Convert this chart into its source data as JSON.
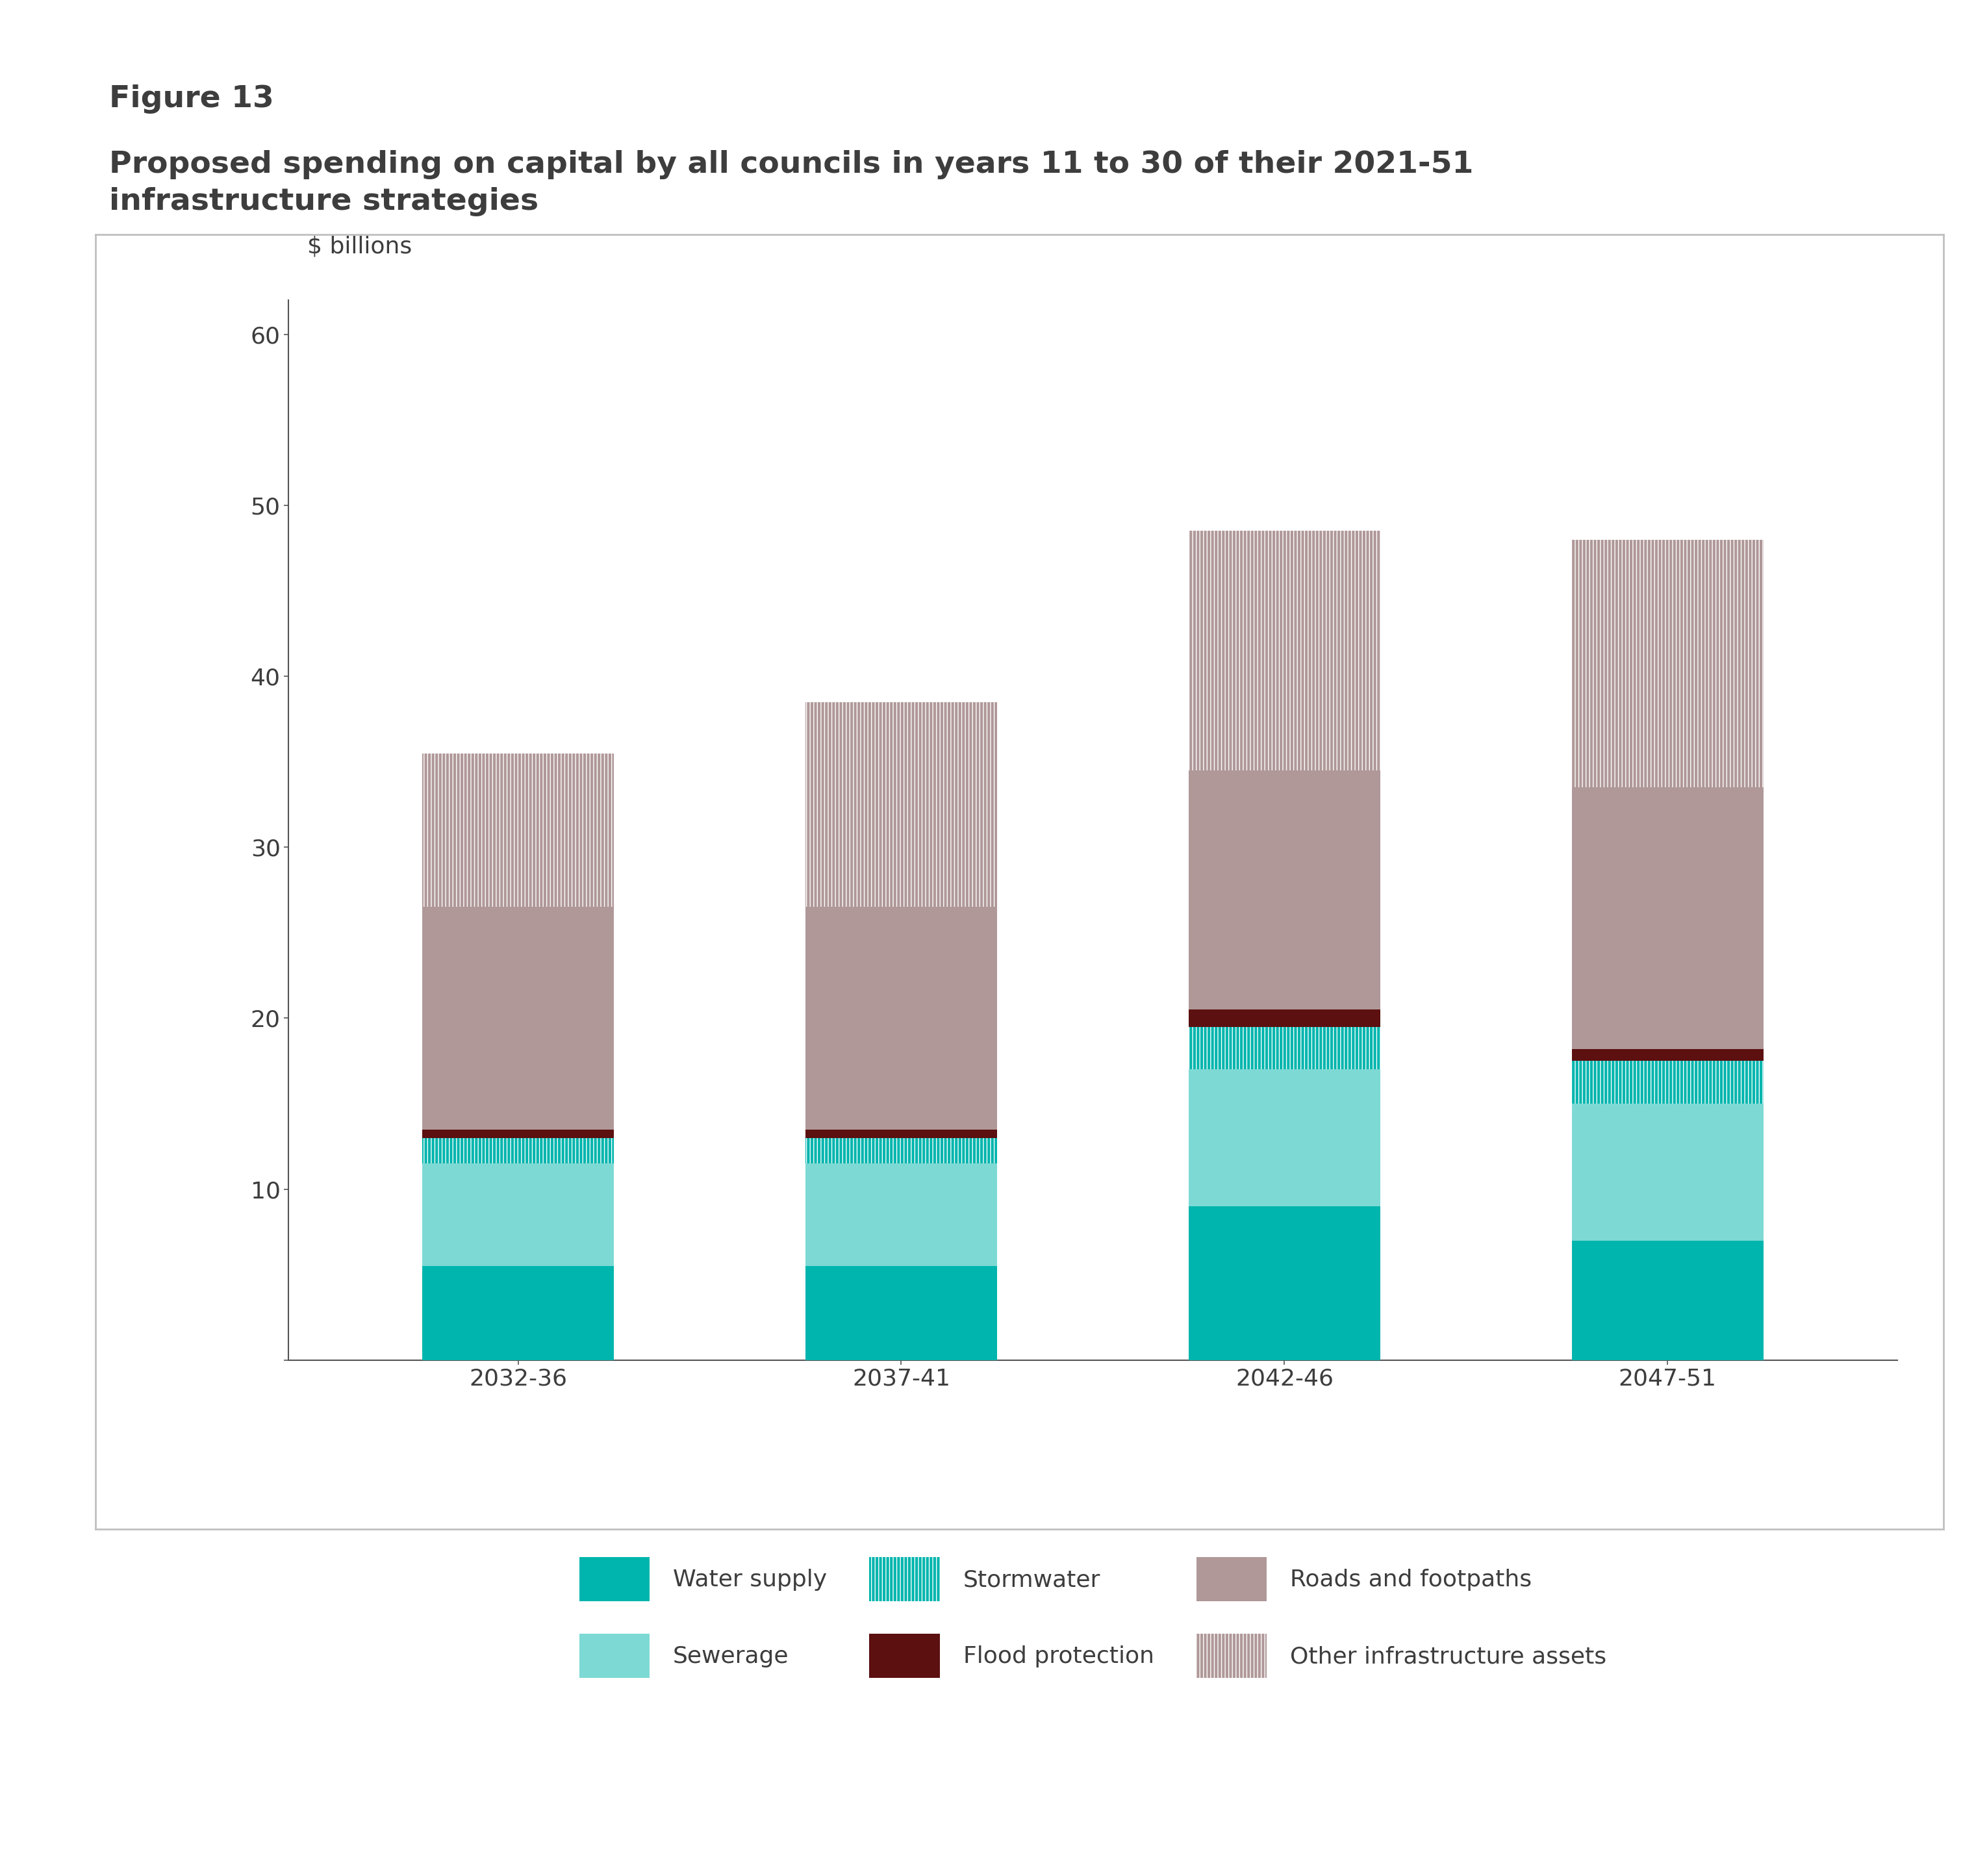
{
  "figure_label": "Figure 13",
  "title_line1": "Proposed spending on capital by all councils in years 11 to 30 of their 2021-51",
  "title_line2": "infrastructure strategies",
  "ylabel": "$ billions",
  "categories": [
    "2032-36",
    "2037-41",
    "2042-46",
    "2047-51"
  ],
  "water_supply": [
    5.5,
    5.5,
    9.0,
    7.0
  ],
  "sewerage": [
    6.0,
    6.0,
    8.0,
    8.0
  ],
  "stormwater": [
    1.5,
    1.5,
    2.5,
    2.5
  ],
  "flood_protection": [
    0.5,
    0.5,
    1.0,
    0.7
  ],
  "roads_footpaths": [
    13.0,
    13.0,
    14.0,
    15.3
  ],
  "other_infra": [
    9.0,
    12.0,
    14.0,
    14.5
  ],
  "color_water": "#00b5ad",
  "color_sewerage": "#7dd9d4",
  "color_stormwater": "#00b5ad",
  "color_flood": "#5c1010",
  "color_roads": "#b09898",
  "color_other": "#b09898",
  "hatch_stormwater": "|||",
  "hatch_other": "|||",
  "ylim_min": 0,
  "ylim_max": 62,
  "yticks": [
    0,
    10,
    20,
    30,
    40,
    50,
    60
  ],
  "bar_width": 0.5,
  "bg_color": "#ffffff",
  "text_color": "#3d3d3d",
  "spine_color": "#555555",
  "border_color": "#c0c0c0",
  "tick_fontsize": 26,
  "label_fontsize": 26,
  "title_fontsize": 34,
  "figlabel_fontsize": 34,
  "legend_fontsize": 26,
  "legend_labels": [
    "Water supply",
    "Sewerage",
    "Stormwater",
    "Flood protection",
    "Roads and footpaths",
    "Other infrastructure assets"
  ]
}
